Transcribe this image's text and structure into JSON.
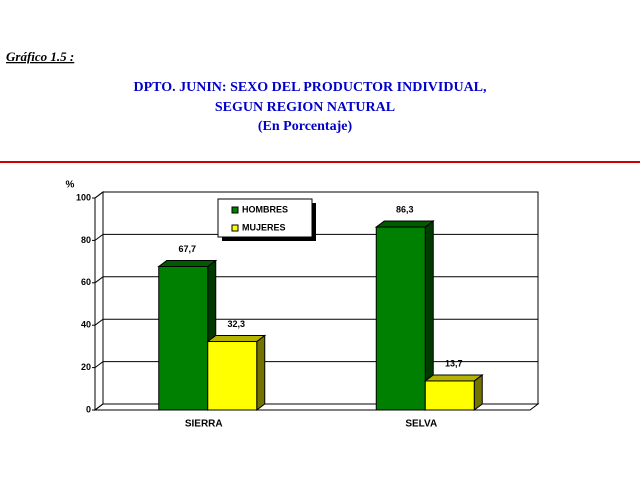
{
  "header": "Gráfico 1.5 :",
  "chart_data": {
    "type": "bar3d",
    "title": [
      "DPTO. JUNIN: SEXO DEL PRODUCTOR INDIVIDUAL,",
      "SEGUN REGION NATURAL",
      "(En Porcentaje)"
    ],
    "y_label": "%",
    "categories": [
      "SIERRA",
      "SELVA"
    ],
    "series": [
      {
        "name": "HOMBRES",
        "color": "#008000",
        "values": [
          67.7,
          86.3
        ],
        "value_labels": [
          "67,7",
          "86,3"
        ]
      },
      {
        "name": "MUJERES",
        "color": "#ffff00",
        "values": [
          32.3,
          13.7
        ],
        "value_labels": [
          "32,3",
          "13,7"
        ]
      }
    ],
    "ylim": [
      0,
      100
    ],
    "yticks": [
      0,
      20,
      40,
      60,
      80,
      100
    ],
    "grid": true
  }
}
